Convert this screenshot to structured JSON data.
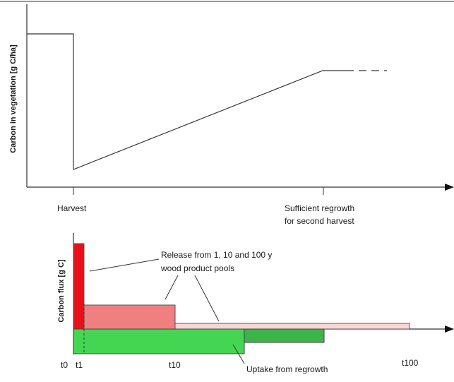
{
  "colors": {
    "line": "#333333",
    "flux_red": "#e8111a",
    "flux_pink": "#f08080",
    "flux_light_pink": "#f9d6d6",
    "flux_green": "#44d653",
    "uptake_green": "#3cb44a"
  },
  "top_panel": {
    "ylabel": "Carbon in vegetation [g C/ha]",
    "event_labels": {
      "harvest": "Harvest",
      "regrowth_line1": "Sufficient regrowth",
      "regrowth_line2": "for second harvest"
    }
  },
  "bottom_panel": {
    "ylabel": "Carbon flux [g C]",
    "release_label_line1": "Release from 1, 10 and 100 y",
    "release_label_line2": "wood product pools",
    "uptake_label": "Uptake from regrowth",
    "ticks": {
      "t0": "t0",
      "t1": "t1",
      "t10": "t10",
      "t100": "t100"
    }
  }
}
